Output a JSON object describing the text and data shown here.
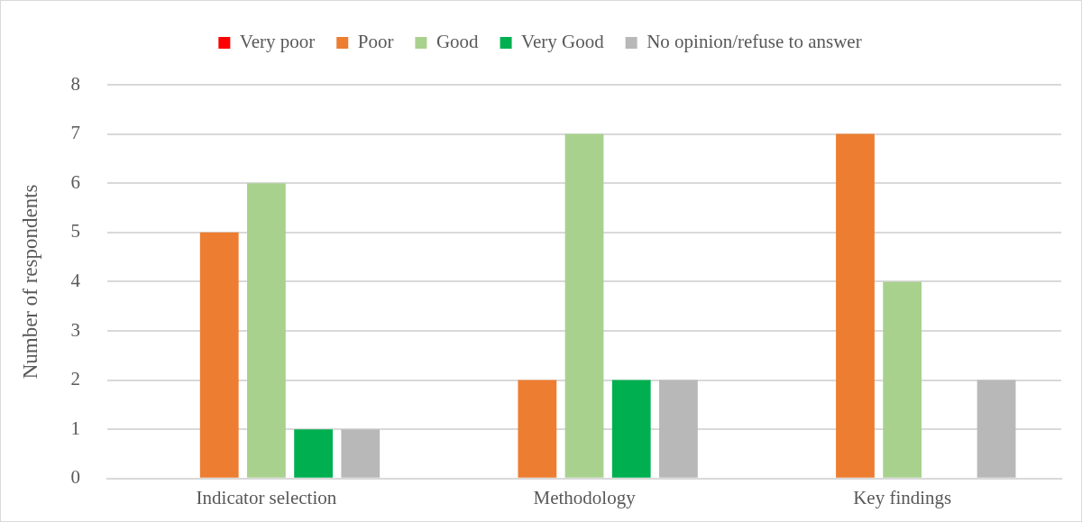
{
  "chart_data": {
    "type": "bar",
    "ylabel": "Number of respondents",
    "categories": [
      "Indicator selection",
      "Methodology",
      "Key findings"
    ],
    "series": [
      {
        "name": "Very poor",
        "color": "#ff0000",
        "values": [
          0,
          0,
          0
        ]
      },
      {
        "name": "Poor",
        "color": "#ed7d31",
        "values": [
          5,
          2,
          7
        ]
      },
      {
        "name": "Good",
        "color": "#a9d18e",
        "values": [
          6,
          7,
          4
        ]
      },
      {
        "name": "Very Good",
        "color": "#00b050",
        "values": [
          1,
          2,
          0
        ]
      },
      {
        "name": "No opinion/refuse to answer",
        "color": "#b8b8b8",
        "values": [
          1,
          2,
          2
        ]
      }
    ],
    "ylim": [
      0,
      8
    ],
    "yticks": [
      0,
      1,
      2,
      3,
      4,
      5,
      6,
      7,
      8
    ],
    "grid": "y",
    "legend": "top"
  }
}
